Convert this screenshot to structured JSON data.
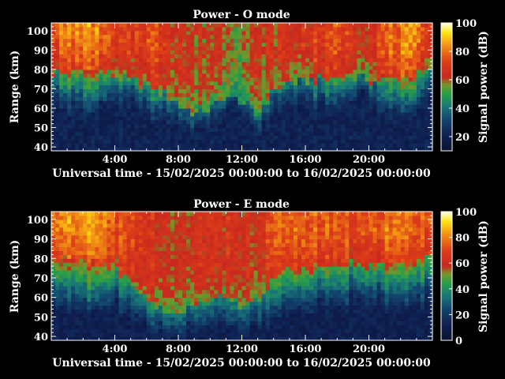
{
  "chart_data": [
    {
      "type": "heatmap",
      "title": "Power - O mode",
      "xlabel": "Universal time - 15/02/2025 00:00:00 to 16/02/2025 00:00:00",
      "ylabel": "Range (km)",
      "x_ticks": [
        "4:00",
        "8:00",
        "12:00",
        "16:00",
        "20:00"
      ],
      "x_tick_hours": [
        4,
        8,
        12,
        16,
        20
      ],
      "xlim_hours": [
        0,
        24
      ],
      "y_ticks": [
        40,
        50,
        60,
        70,
        80,
        90,
        100
      ],
      "ylim": [
        38,
        104
      ],
      "colorbar": {
        "label": "Signal power (dB)",
        "ticks": [
          20,
          40,
          60,
          80,
          100
        ],
        "range": [
          10,
          100
        ]
      },
      "profile": {
        "hours": [
          0,
          1,
          2,
          3,
          4,
          5,
          6,
          7,
          8,
          9,
          10,
          11,
          12,
          13,
          14,
          15,
          16,
          17,
          18,
          19,
          20,
          21,
          22,
          23,
          24
        ],
        "base_km": [
          78,
          79,
          80,
          79,
          77,
          75,
          72,
          68,
          62,
          58,
          60,
          66,
          64,
          56,
          70,
          73,
          74,
          75,
          76,
          76,
          75,
          74,
          76,
          78,
          79
        ],
        "peak_db": [
          65,
          70,
          75,
          72,
          58,
          60,
          65,
          62,
          56,
          52,
          54,
          52,
          48,
          52,
          55,
          57,
          58,
          62,
          64,
          60,
          58,
          66,
          72,
          68,
          62
        ]
      }
    },
    {
      "type": "heatmap",
      "title": "Power - E mode",
      "xlabel": "Universal time - 15/02/2025 00:00:00 to 16/02/2025 00:00:00",
      "ylabel": "Range (km)",
      "x_ticks": [
        "4:00",
        "8:00",
        "12:00",
        "16:00",
        "20:00"
      ],
      "x_tick_hours": [
        4,
        8,
        12,
        16,
        20
      ],
      "xlim_hours": [
        0,
        24
      ],
      "y_ticks": [
        40,
        50,
        60,
        70,
        80,
        90,
        100
      ],
      "ylim": [
        38,
        104
      ],
      "colorbar": {
        "label": "Signal power (dB)",
        "ticks": [
          0,
          20,
          40,
          60,
          80,
          100
        ],
        "range": [
          0,
          100
        ]
      },
      "profile": {
        "hours": [
          0,
          1,
          2,
          3,
          4,
          5,
          6,
          7,
          8,
          9,
          10,
          11,
          12,
          13,
          14,
          15,
          16,
          17,
          18,
          19,
          20,
          21,
          22,
          23,
          24
        ],
        "base_km": [
          78,
          79,
          79,
          78,
          76,
          68,
          60,
          55,
          52,
          55,
          60,
          62,
          55,
          58,
          70,
          74,
          75,
          76,
          77,
          77,
          76,
          77,
          78,
          79,
          80
        ],
        "peak_db": [
          66,
          72,
          74,
          72,
          62,
          58,
          56,
          52,
          50,
          52,
          55,
          54,
          50,
          52,
          62,
          64,
          64,
          64,
          64,
          62,
          62,
          66,
          70,
          66,
          62
        ]
      }
    }
  ]
}
